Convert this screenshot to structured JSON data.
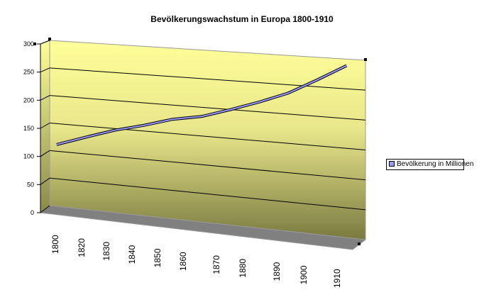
{
  "chart_data": {
    "type": "line",
    "style": "3d-line",
    "title": "Bevölkerungswachstum in Europa 1800-1910",
    "categories": [
      "1800",
      "1820",
      "1830",
      "1840",
      "1850",
      "1860",
      "1870",
      "1880",
      "1890",
      "1900",
      "1910"
    ],
    "series": [
      {
        "name": "Bevölkerung in Millionen",
        "values": [
          112,
          130,
          147,
          160,
          175,
          184,
          200,
          217,
          236,
          262,
          289
        ],
        "color": "#9999ff"
      }
    ],
    "yticks": [
      "0",
      "50",
      "100",
      "150",
      "200",
      "250",
      "300"
    ],
    "ylim": [
      0,
      300
    ],
    "grid": true,
    "legend": "right",
    "colors": {
      "wall_top": "#ffff99",
      "wall_bottom": "#808040",
      "floor": "#808080"
    }
  }
}
